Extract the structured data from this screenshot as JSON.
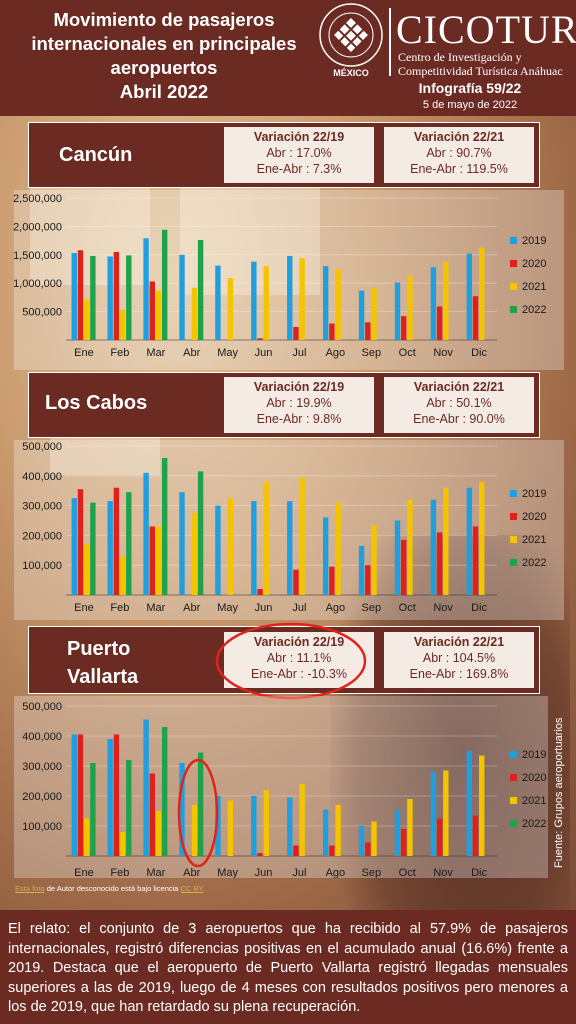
{
  "header": {
    "title_lines": [
      "Movimiento de pasajeros",
      "internacionales en principales",
      "aeropuertos",
      "Abril 2022"
    ],
    "university_seal_text": "UNIVERSIDAD ANÁHUAC · VINCE IN BONO MALUM",
    "university_location": "MÉXICO",
    "brand": "CICOTUR",
    "brand_sub1": "Centro de Investigación y",
    "brand_sub2": "Competitividad Turística Anáhuac",
    "infografia": "Infografía 59/22",
    "fecha": "5 de mayo de 2022"
  },
  "colors": {
    "s2019": "#1f9ee0",
    "s2020": "#e0201b",
    "s2021": "#f5c400",
    "s2022": "#1fa34a",
    "banner": "#6b2a22",
    "highlight": "#e2231a"
  },
  "chart_data": [
    {
      "type": "bar",
      "title": "Cancún",
      "variacion_22_19": {
        "label": "Variación 22/19",
        "abr": "Abr : 17.0%",
        "ene_abr": "Ene-Abr : 7.3%"
      },
      "variacion_22_21": {
        "label": "Variación 22/21",
        "abr": "Abr : 90.7%",
        "ene_abr": "Ene-Abr : 119.5%"
      },
      "categories": [
        "Ene",
        "Feb",
        "Mar",
        "Abr",
        "May",
        "Jun",
        "Jul",
        "Ago",
        "Sep",
        "Oct",
        "Nov",
        "Dic"
      ],
      "yticks": [
        "2,500,000",
        "2,000,000",
        "1,500,000",
        "1,000,000",
        "500,000"
      ],
      "ylim": [
        0,
        2500000
      ],
      "series": [
        {
          "name": "2019",
          "values": [
            1530000,
            1470000,
            1790000,
            1500000,
            1310000,
            1380000,
            1480000,
            1300000,
            870000,
            1010000,
            1280000,
            1520000
          ]
        },
        {
          "name": "2020",
          "values": [
            1580000,
            1550000,
            1030000,
            0,
            0,
            30000,
            230000,
            290000,
            310000,
            420000,
            590000,
            770000
          ]
        },
        {
          "name": "2021",
          "values": [
            710000,
            530000,
            870000,
            920000,
            1090000,
            1300000,
            1440000,
            1240000,
            920000,
            1130000,
            1380000,
            1630000
          ]
        },
        {
          "name": "2022",
          "values": [
            1480000,
            1490000,
            1940000,
            1760000,
            null,
            null,
            null,
            null,
            null,
            null,
            null,
            null
          ]
        }
      ]
    },
    {
      "type": "bar",
      "title": "Los Cabos",
      "variacion_22_19": {
        "label": "Variación 22/19",
        "abr": "Abr : 19.9%",
        "ene_abr": "Ene-Abr : 9.8%"
      },
      "variacion_22_21": {
        "label": "Variación 22/21",
        "abr": "Abr : 50.1%",
        "ene_abr": "Ene-Abr : 90.0%"
      },
      "categories": [
        "Ene",
        "Feb",
        "Mar",
        "Abr",
        "May",
        "Jun",
        "Jul",
        "Ago",
        "Sep",
        "Oct",
        "Nov",
        "Dic"
      ],
      "yticks": [
        "500,000",
        "400,000",
        "300,000",
        "200,000",
        "100,000"
      ],
      "ylim": [
        0,
        500000
      ],
      "series": [
        {
          "name": "2019",
          "values": [
            325000,
            315000,
            410000,
            345000,
            300000,
            315000,
            315000,
            260000,
            165000,
            250000,
            320000,
            360000
          ]
        },
        {
          "name": "2020",
          "values": [
            355000,
            360000,
            230000,
            0,
            0,
            20000,
            85000,
            95000,
            100000,
            185000,
            210000,
            230000
          ]
        },
        {
          "name": "2021",
          "values": [
            170000,
            130000,
            230000,
            275000,
            325000,
            380000,
            395000,
            310000,
            235000,
            320000,
            360000,
            380000
          ]
        },
        {
          "name": "2022",
          "values": [
            310000,
            345000,
            460000,
            415000,
            null,
            null,
            null,
            null,
            null,
            null,
            null,
            null
          ]
        }
      ]
    },
    {
      "type": "bar",
      "title": "Puerto Vallarta",
      "title_lines": [
        "Puerto",
        "Vallarta"
      ],
      "variacion_22_19": {
        "label": "Variación 22/19",
        "abr": "Abr : 11.1%",
        "ene_abr": "Ene-Abr : -10.3%"
      },
      "variacion_22_21": {
        "label": "Variación 22/21",
        "abr": "Abr : 104.5%",
        "ene_abr": "Ene-Abr : 169.8%"
      },
      "categories": [
        "Ene",
        "Feb",
        "Mar",
        "Abr",
        "May",
        "Jun",
        "Jul",
        "Ago",
        "Sep",
        "Oct",
        "Nov",
        "Dic"
      ],
      "yticks": [
        "500,000",
        "400,000",
        "300,000",
        "200,000",
        "100,000"
      ],
      "ylim": [
        0,
        500000
      ],
      "series": [
        {
          "name": "2019",
          "values": [
            405000,
            390000,
            455000,
            310000,
            200000,
            200000,
            195000,
            155000,
            100000,
            155000,
            280000,
            350000
          ]
        },
        {
          "name": "2020",
          "values": [
            405000,
            405000,
            275000,
            0,
            0,
            10000,
            35000,
            35000,
            45000,
            90000,
            125000,
            135000
          ]
        },
        {
          "name": "2021",
          "values": [
            125000,
            80000,
            150000,
            170000,
            185000,
            220000,
            240000,
            170000,
            115000,
            190000,
            285000,
            335000
          ]
        },
        {
          "name": "2022",
          "values": [
            310000,
            320000,
            430000,
            345000,
            null,
            null,
            null,
            null,
            null,
            null,
            null,
            null
          ]
        }
      ]
    }
  ],
  "credit": {
    "link1": "Esta foto",
    "middle": " de Autor desconocido está bajo licencia ",
    "link2": "CC BY"
  },
  "source": "Fuente: Grupos aeroportuarios",
  "footer": "El relato: el conjunto de 3 aeropuertos que ha recibido al 57.9% de pasajeros internacionales, registró diferencias positivas en el acumulado anual (16.6%) frente a 2019. Destaca que el aeropuerto de Puerto Vallarta registró llegadas mensuales superiores a las de 2019, luego de 4 meses con resultados positivos pero menores a los de 2019, que han retardado su plena recuperación."
}
